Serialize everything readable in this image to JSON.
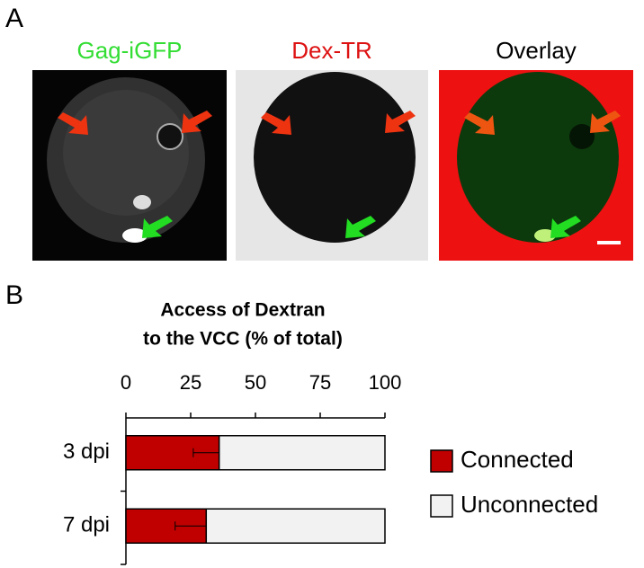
{
  "panels": {
    "a": {
      "label": "A",
      "images": [
        {
          "title": "Gag-iGFP",
          "color": "#33dd33"
        },
        {
          "title": "Dex-TR",
          "color": "#dd1111"
        },
        {
          "title": "Overlay",
          "color": "#000000"
        }
      ]
    },
    "b": {
      "label": "B"
    }
  },
  "chart_data": {
    "type": "bar",
    "orientation": "horizontal",
    "stacked": true,
    "title": [
      "Access of Dextran",
      "to the VCC (% of total)"
    ],
    "categories": [
      "3 dpi",
      "7 dpi"
    ],
    "series": [
      {
        "name": "Connected",
        "color": "#c00000",
        "values": [
          36,
          31
        ],
        "errors": [
          10,
          12
        ]
      },
      {
        "name": "Unconnected",
        "color": "#f2f2f2",
        "values": [
          64,
          69
        ]
      }
    ],
    "xlim": [
      0,
      100
    ],
    "xticks": [
      0,
      25,
      50,
      75,
      100
    ],
    "legend": "right"
  }
}
